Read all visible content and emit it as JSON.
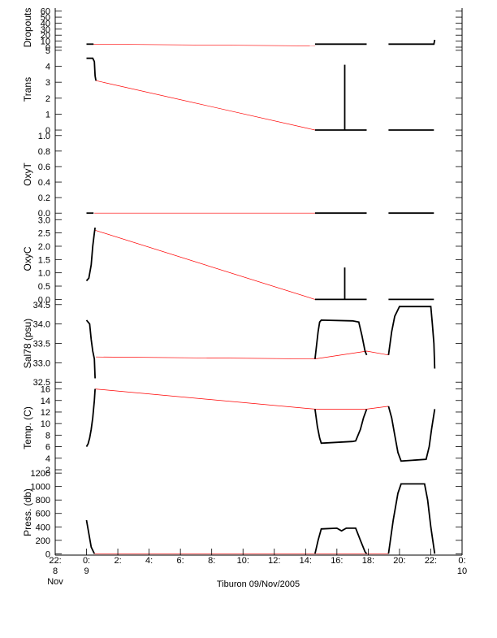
{
  "chart_data": {
    "type": "line",
    "caption": "Tiburon 09/Nov/2005",
    "x_ticks": [
      {
        "label": "22:",
        "sub": "8",
        "sub2": "Nov",
        "t": -2
      },
      {
        "label": "0:",
        "sub": "9",
        "t": 0
      },
      {
        "label": "2:",
        "t": 2
      },
      {
        "label": "4:",
        "t": 4
      },
      {
        "label": "6:",
        "t": 6
      },
      {
        "label": "8:",
        "t": 8
      },
      {
        "label": "10:",
        "t": 10
      },
      {
        "label": "12:",
        "t": 12
      },
      {
        "label": "14:",
        "t": 14
      },
      {
        "label": "16:",
        "t": 16
      },
      {
        "label": "18:",
        "t": 18
      },
      {
        "label": "20:",
        "t": 20
      },
      {
        "label": "22:",
        "t": 22
      },
      {
        "label": "0:",
        "sub": "10",
        "t": 24
      }
    ],
    "xlim": [
      -2,
      24
    ],
    "panels": [
      {
        "ylabel": "Dropouts",
        "ylim": [
          0,
          65
        ],
        "ticks": [
          0,
          10,
          20,
          30,
          40,
          50,
          60
        ],
        "tick_labels": [
          "0",
          "10",
          "20",
          "30",
          "40",
          "50",
          "60"
        ],
        "interp": [
          [
            0.1,
            5
          ],
          [
            14.6,
            2
          ]
        ],
        "segments": [
          [
            [
              0,
              5
            ],
            [
              0.45,
              5
            ]
          ],
          [
            [
              14.6,
              5
            ],
            [
              17.9,
              5
            ]
          ],
          [
            [
              19.3,
              5
            ],
            [
              22.2,
              5
            ],
            [
              22.25,
              12
            ]
          ]
        ]
      },
      {
        "ylabel": "Trans",
        "ylim": [
          -0.1,
          5.2
        ],
        "ticks": [
          0,
          1,
          2,
          3,
          4,
          5
        ],
        "tick_labels": [
          "0",
          "1",
          "2",
          "3",
          "4",
          "5"
        ],
        "interp": [
          [
            0.6,
            3.1
          ],
          [
            14.6,
            0
          ]
        ],
        "segments": [
          [
            [
              0,
              4.5
            ],
            [
              0.4,
              4.5
            ],
            [
              0.5,
              4.3
            ],
            [
              0.55,
              3.4
            ],
            [
              0.6,
              3.1
            ]
          ],
          [
            [
              14.6,
              0
            ],
            [
              17.9,
              0
            ]
          ],
          [
            [
              16.5,
              0
            ],
            [
              16.5,
              4.1
            ],
            [
              16.5,
              0
            ]
          ],
          [
            [
              19.3,
              0
            ],
            [
              22.2,
              0
            ]
          ]
        ]
      },
      {
        "ylabel": "OxyT",
        "ylim": [
          -0.05,
          1.05
        ],
        "ticks": [
          0.0,
          0.2,
          0.4,
          0.6,
          0.8,
          1.0
        ],
        "tick_labels": [
          "0.0",
          "0.2",
          "0.4",
          "0.6",
          "0.8",
          "1.0"
        ],
        "interp": [
          [
            0.5,
            0
          ],
          [
            14.6,
            0
          ]
        ],
        "segments": [
          [
            [
              0,
              0
            ],
            [
              0.45,
              0
            ]
          ],
          [
            [
              14.6,
              0
            ],
            [
              17.9,
              0
            ]
          ],
          [
            [
              19.3,
              0
            ],
            [
              22.2,
              0
            ]
          ]
        ]
      },
      {
        "ylabel": "OxyC",
        "ylim": [
          -0.05,
          3.1
        ],
        "ticks": [
          0.0,
          0.5,
          1.0,
          1.5,
          2.0,
          2.5,
          3.0
        ],
        "tick_labels": [
          "0.0",
          "0.5",
          "1.0",
          "1.5",
          "2.0",
          "2.5",
          "3.0"
        ],
        "interp": [
          [
            0.55,
            2.6
          ],
          [
            14.6,
            0
          ]
        ],
        "segments": [
          [
            [
              0,
              0.7
            ],
            [
              0.15,
              0.8
            ],
            [
              0.3,
              1.3
            ],
            [
              0.4,
              2.0
            ],
            [
              0.5,
              2.5
            ],
            [
              0.55,
              2.7
            ]
          ],
          [
            [
              14.6,
              0
            ],
            [
              17.9,
              0
            ]
          ],
          [
            [
              16.5,
              0
            ],
            [
              16.5,
              1.2
            ],
            [
              16.5,
              0
            ]
          ],
          [
            [
              19.3,
              0
            ],
            [
              22.2,
              0
            ]
          ]
        ]
      },
      {
        "ylabel": "Sal78 (psu)",
        "ylim": [
          32.4,
          34.6
        ],
        "ticks": [
          32.5,
          33.0,
          33.5,
          34.0,
          34.5
        ],
        "tick_labels": [
          "32.5",
          "33.0",
          "33.5",
          "34.0",
          "34.5"
        ],
        "interp": [
          [
            0.6,
            33.15
          ],
          [
            14.6,
            33.1
          ],
          [
            17.9,
            33.3
          ],
          [
            19.3,
            33.2
          ]
        ],
        "segments": [
          [
            [
              0,
              34.1
            ],
            [
              0.1,
              34.05
            ],
            [
              0.2,
              34.0
            ],
            [
              0.3,
              33.6
            ],
            [
              0.4,
              33.3
            ],
            [
              0.5,
              33.1
            ],
            [
              0.55,
              32.6
            ]
          ],
          [
            [
              14.6,
              33.1
            ],
            [
              14.8,
              33.8
            ],
            [
              14.9,
              34.05
            ],
            [
              15.0,
              34.1
            ],
            [
              17.0,
              34.08
            ],
            [
              17.4,
              34.05
            ],
            [
              17.6,
              33.7
            ],
            [
              17.8,
              33.3
            ],
            [
              17.9,
              33.2
            ]
          ],
          [
            [
              19.3,
              33.2
            ],
            [
              19.5,
              33.8
            ],
            [
              19.7,
              34.2
            ],
            [
              20.0,
              34.45
            ],
            [
              22.0,
              34.45
            ],
            [
              22.1,
              34.0
            ],
            [
              22.2,
              33.5
            ],
            [
              22.25,
              32.85
            ]
          ]
        ]
      },
      {
        "ylabel": "Temp. (C)",
        "ylim": [
          2,
          16.5
        ],
        "ticks": [
          2,
          4,
          6,
          8,
          10,
          12,
          14,
          16
        ],
        "tick_labels": [
          "2",
          "4",
          "6",
          "8",
          "10",
          "12",
          "14",
          "16"
        ],
        "interp": [
          [
            0.55,
            16
          ],
          [
            14.6,
            12.5
          ],
          [
            17.9,
            12.5
          ],
          [
            19.3,
            13
          ]
        ],
        "segments": [
          [
            [
              0,
              6
            ],
            [
              0.1,
              6.5
            ],
            [
              0.2,
              7.5
            ],
            [
              0.3,
              9.0
            ],
            [
              0.4,
              11.0
            ],
            [
              0.5,
              14.0
            ],
            [
              0.55,
              16
            ]
          ],
          [
            [
              14.6,
              12.5
            ],
            [
              14.75,
              9.5
            ],
            [
              14.9,
              7.5
            ],
            [
              15.0,
              6.6
            ],
            [
              17.0,
              6.9
            ],
            [
              17.2,
              7.0
            ],
            [
              17.5,
              9.0
            ],
            [
              17.7,
              11.0
            ],
            [
              17.9,
              12.5
            ]
          ],
          [
            [
              19.3,
              13
            ],
            [
              19.5,
              11
            ],
            [
              19.7,
              8
            ],
            [
              19.9,
              5
            ],
            [
              20.1,
              3.5
            ],
            [
              21.7,
              3.8
            ],
            [
              21.9,
              6
            ],
            [
              22.05,
              9
            ],
            [
              22.25,
              12.5
            ]
          ]
        ]
      },
      {
        "ylabel": "Press. (db)",
        "ylim": [
          -20,
          1250
        ],
        "ticks": [
          0,
          200,
          400,
          600,
          800,
          1000,
          1200
        ],
        "tick_labels": [
          "0",
          "200",
          "400",
          "600",
          "800",
          "1000",
          "1200"
        ],
        "interp": [
          [
            0.5,
            0
          ],
          [
            14.6,
            0
          ],
          [
            17.9,
            0
          ],
          [
            19.3,
            0
          ]
        ],
        "segments": [
          [
            [
              0,
              500
            ],
            [
              0.15,
              300
            ],
            [
              0.3,
              100
            ],
            [
              0.5,
              0
            ]
          ],
          [
            [
              14.6,
              0
            ],
            [
              14.8,
              200
            ],
            [
              15.0,
              370
            ],
            [
              16.0,
              380
            ],
            [
              16.3,
              340
            ],
            [
              16.6,
              380
            ],
            [
              17.2,
              380
            ],
            [
              17.5,
              200
            ],
            [
              17.8,
              30
            ],
            [
              17.9,
              0
            ]
          ],
          [
            [
              19.3,
              0
            ],
            [
              19.6,
              500
            ],
            [
              19.9,
              900
            ],
            [
              20.1,
              1040
            ],
            [
              21.6,
              1040
            ],
            [
              21.8,
              800
            ],
            [
              22.0,
              400
            ],
            [
              22.25,
              0
            ]
          ]
        ]
      }
    ]
  }
}
